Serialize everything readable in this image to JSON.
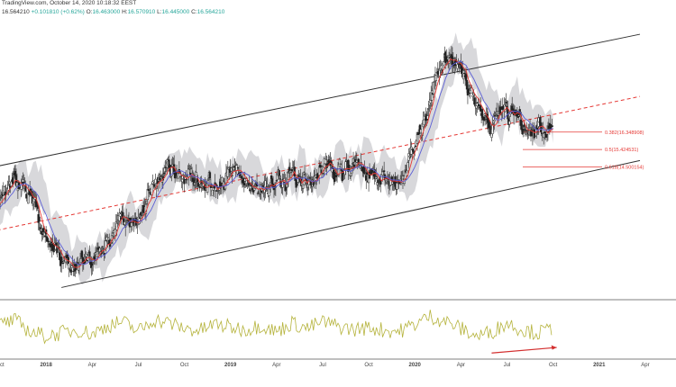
{
  "header": {
    "line1": "TradingView.com, October 14, 2020 10:18:32 EEST",
    "symbol_value": "16.564210",
    "change": "+0.101810 (+0.62%)",
    "open_label": "O:",
    "open": "16.463000",
    "high_label": "H:",
    "high": "16.570910",
    "low_label": "L:",
    "low": "16.445000",
    "close_label": "C:",
    "close": "16.564210"
  },
  "fib_levels": [
    {
      "label": "0.382(16.348908)",
      "ratio": 0.382,
      "price": 16.348908
    },
    {
      "label": "0.5(15.424531)",
      "ratio": 0.5,
      "price": 15.424531
    },
    {
      "label": "0.618(14.500154)",
      "ratio": 0.618,
      "price": 14.500154
    }
  ],
  "time_axis": [
    "Oct",
    "2018",
    "Apr",
    "Jul",
    "Oct",
    "2019",
    "Apr",
    "Jul",
    "Oct",
    "2020",
    "Apr",
    "Jul",
    "Oct",
    "2021",
    "Apr"
  ],
  "colors": {
    "candle_up": "#222222",
    "candle_down": "#222222",
    "channel": "#333333",
    "midline": "#e53935",
    "fib": "#e53935",
    "fast_ma": "#e53935",
    "slow_ma": "#5c5fd6",
    "cloud": "#c8c8cc",
    "oscillator": "#b5b33c",
    "divergence_arrow": "#d32f2f",
    "pane_border": "#555555"
  },
  "chart_data": {
    "type": "line",
    "title": "",
    "price_series": {
      "name": "",
      "x": [
        "2017-09",
        "2017-10",
        "2017-11",
        "2017-12",
        "2018-01",
        "2018-02",
        "2018-03",
        "2018-04",
        "2018-05",
        "2018-06",
        "2018-07",
        "2018-08",
        "2018-09",
        "2018-10",
        "2018-11",
        "2018-12",
        "2019-01",
        "2019-02",
        "2019-03",
        "2019-04",
        "2019-05",
        "2019-06",
        "2019-07",
        "2019-08",
        "2019-09",
        "2019-10",
        "2019-11",
        "2019-12",
        "2020-01",
        "2020-02",
        "2020-03",
        "2020-04",
        "2020-05",
        "2020-06",
        "2020-07",
        "2020-08",
        "2020-09",
        "2020-10"
      ],
      "values": [
        12.2,
        12.6,
        13.8,
        13.1,
        10.6,
        9.6,
        9.3,
        9.6,
        10.5,
        11.9,
        11.6,
        13.3,
        14.4,
        14.0,
        13.8,
        13.4,
        13.9,
        14.1,
        13.2,
        13.7,
        14.0,
        13.5,
        14.6,
        14.3,
        14.4,
        14.1,
        13.8,
        13.6,
        15.2,
        17.9,
        20.4,
        19.8,
        18.1,
        16.6,
        17.5,
        16.9,
        16.6,
        16.56
      ]
    },
    "oscillator_series": {
      "name": "",
      "x": [
        "2017-09",
        "2017-10",
        "2017-11",
        "2017-12",
        "2018-01",
        "2018-02",
        "2018-03",
        "2018-04",
        "2018-05",
        "2018-06",
        "2018-07",
        "2018-08",
        "2018-09",
        "2018-10",
        "2018-11",
        "2018-12",
        "2019-01",
        "2019-02",
        "2019-03",
        "2019-04",
        "2019-05",
        "2019-06",
        "2019-07",
        "2019-08",
        "2019-09",
        "2019-10",
        "2019-11",
        "2019-12",
        "2020-01",
        "2020-02",
        "2020-03",
        "2020-04",
        "2020-05",
        "2020-06",
        "2020-07",
        "2020-08",
        "2020-09",
        "2020-10"
      ],
      "values": [
        50,
        58,
        64,
        44,
        36,
        42,
        48,
        40,
        55,
        62,
        45,
        66,
        60,
        50,
        46,
        58,
        52,
        48,
        56,
        44,
        60,
        50,
        62,
        54,
        48,
        52,
        47,
        45,
        58,
        72,
        63,
        50,
        36,
        44,
        60,
        48,
        42,
        50
      ]
    },
    "channel": {
      "upper": {
        "from": [
          "2017-09",
          14.4
        ],
        "to": [
          "2021-04",
          21.6
        ]
      },
      "lower": {
        "from": [
          "2018-02",
          8.1
        ],
        "to": [
          "2021-04",
          14.9
        ]
      },
      "mid": {
        "from": [
          "2017-09",
          11.0
        ],
        "to": [
          "2021-04",
          18.3
        ]
      }
    },
    "xlabel": "",
    "ylabel": "",
    "grid": false,
    "legend": "none"
  }
}
